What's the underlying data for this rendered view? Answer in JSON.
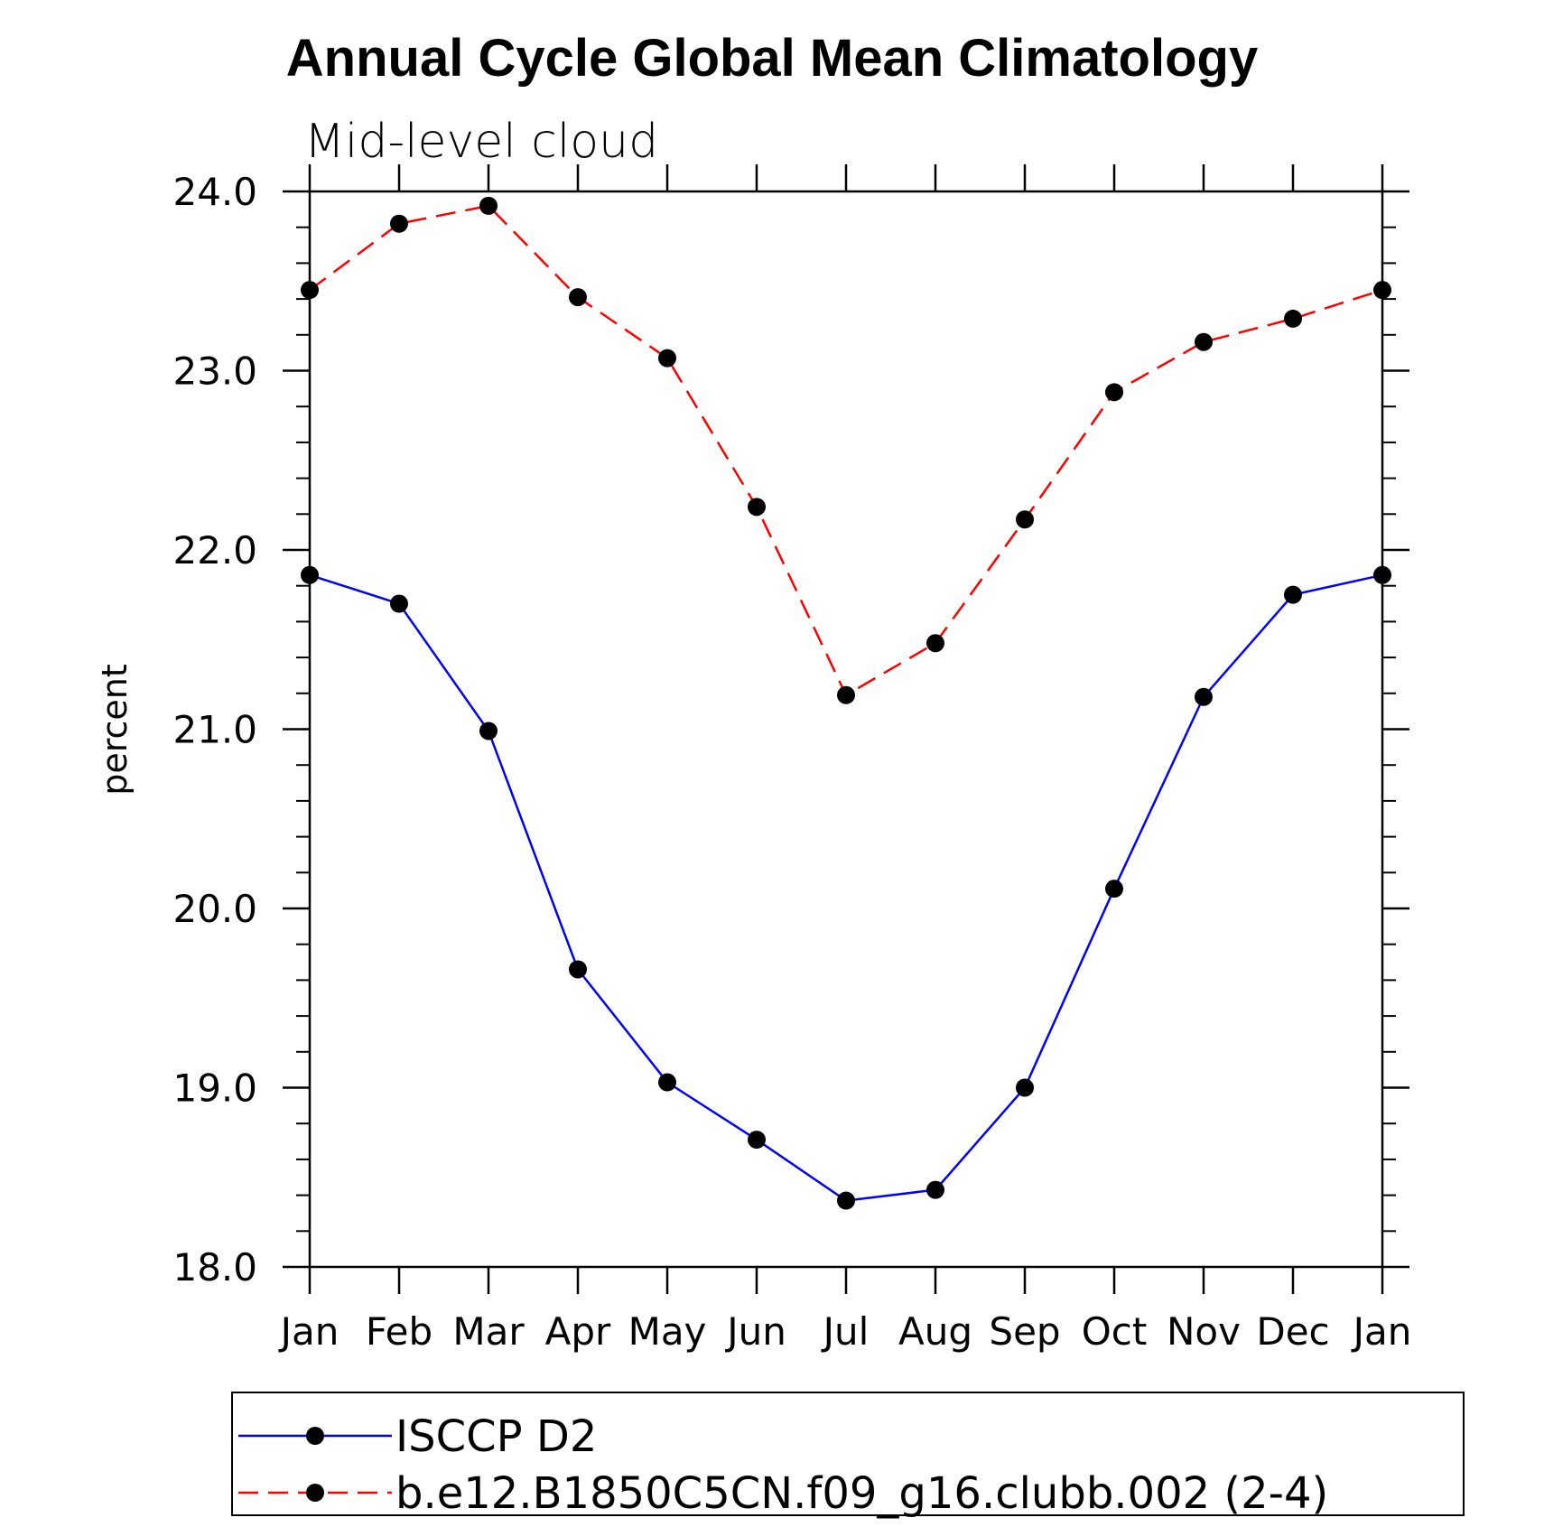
{
  "chart_data": {
    "type": "line",
    "title": "Annual Cycle Global Mean Climatology",
    "subtitle": "Mid-level cloud",
    "xlabel": "",
    "ylabel": "percent",
    "categories": [
      "Jan",
      "Feb",
      "Mar",
      "Apr",
      "May",
      "Jun",
      "Jul",
      "Aug",
      "Sep",
      "Oct",
      "Nov",
      "Dec",
      "Jan"
    ],
    "ylim": [
      18.0,
      24.0
    ],
    "yticks": [
      "18.0",
      "19.0",
      "20.0",
      "21.0",
      "22.0",
      "23.0",
      "24.0"
    ],
    "grid": false,
    "legend_position": "bottom",
    "series": [
      {
        "name": "ISCCP D2",
        "color": "#0000ff",
        "line_style": "solid",
        "marker": "filled-circle",
        "values": [
          21.86,
          21.7,
          20.99,
          19.66,
          19.03,
          18.71,
          18.37,
          18.43,
          19.0,
          20.11,
          21.18,
          21.75,
          21.86
        ]
      },
      {
        "name": "b.e12.B1850C5CN.f09_g16.clubb.002 (2-4)",
        "color": "#ff0000",
        "line_style": "dashed",
        "marker": "filled-circle",
        "values": [
          23.45,
          23.82,
          23.92,
          23.41,
          23.07,
          22.24,
          21.19,
          21.48,
          22.17,
          22.88,
          23.16,
          23.29,
          23.45
        ]
      }
    ]
  }
}
